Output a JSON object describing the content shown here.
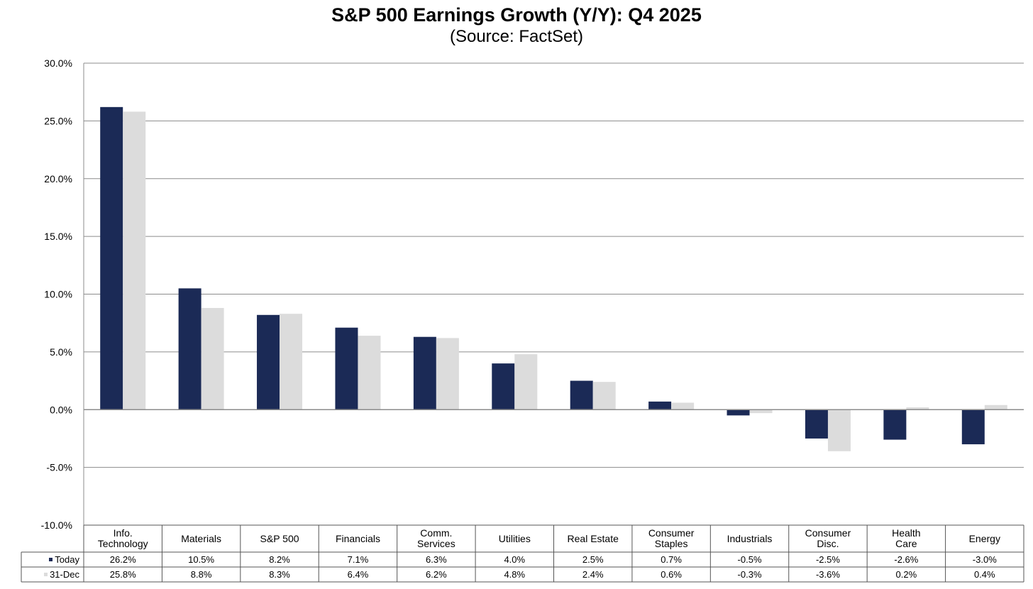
{
  "chart_data": {
    "type": "bar",
    "title": "S&P 500 Earnings Growth (Y/Y): Q4 2025",
    "subtitle": "(Source: FactSet)",
    "categories": [
      "Info.\nTechnology",
      "Materials",
      "S&P 500",
      "Financials",
      "Comm.\nServices",
      "Utilities",
      "Real Estate",
      "Consumer\nStaples",
      "Industrials",
      "Consumer\nDisc.",
      "Health\nCare",
      "Energy"
    ],
    "series": [
      {
        "name": "Today",
        "color": "#1b2a56",
        "values": [
          26.2,
          10.5,
          8.2,
          7.1,
          6.3,
          4.0,
          2.5,
          0.7,
          -0.5,
          -2.5,
          -2.6,
          -3.0
        ],
        "labels": [
          "26.2%",
          "10.5%",
          "8.2%",
          "7.1%",
          "6.3%",
          "4.0%",
          "2.5%",
          "0.7%",
          "-0.5%",
          "-2.5%",
          "-2.6%",
          "-3.0%"
        ]
      },
      {
        "name": "31-Dec",
        "color": "#dcdcdc",
        "values": [
          25.8,
          8.8,
          8.3,
          6.4,
          6.2,
          4.8,
          2.4,
          0.6,
          -0.3,
          -3.6,
          0.2,
          0.4
        ],
        "labels": [
          "25.8%",
          "8.8%",
          "8.3%",
          "6.4%",
          "6.2%",
          "4.8%",
          "2.4%",
          "0.6%",
          "-0.3%",
          "-3.6%",
          "0.2%",
          "0.4%"
        ]
      }
    ],
    "ylim": [
      -10,
      30
    ],
    "yticks": [
      30,
      25,
      20,
      15,
      10,
      5,
      0,
      -5,
      -10
    ],
    "ytick_labels": [
      "30.0%",
      "25.0%",
      "20.0%",
      "15.0%",
      "10.0%",
      "5.0%",
      "0.0%",
      "-5.0%",
      "-10.0%"
    ],
    "grid": true,
    "legend": "data-table"
  }
}
